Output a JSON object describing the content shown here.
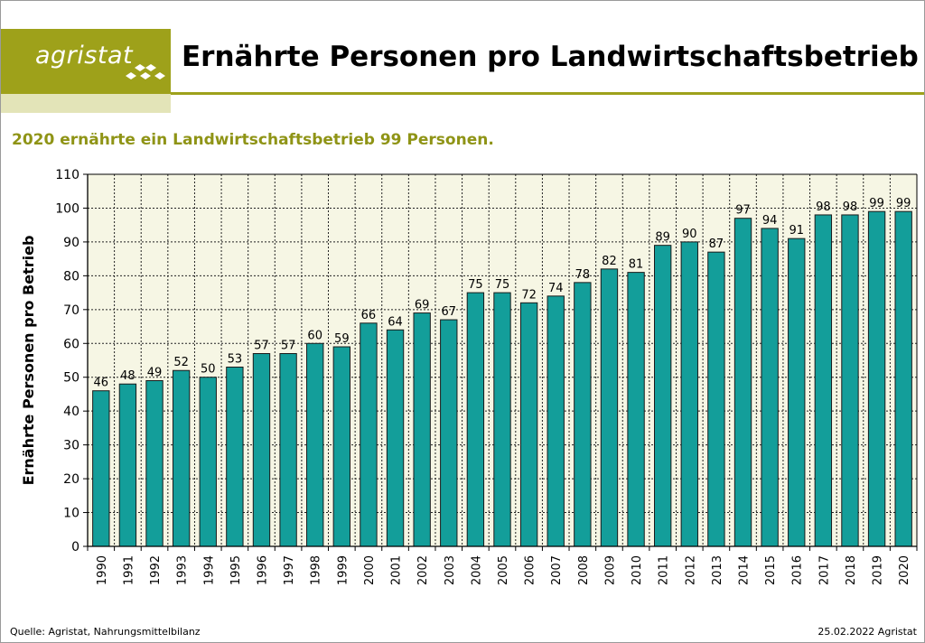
{
  "header": {
    "logo_text": "agristat",
    "title": "Ernährte Personen pro Landwirtschaftsbetrieb",
    "subtitle": "2020 ernährte ein Landwirtschaftsbetrieb 99 Personen."
  },
  "footer": {
    "source": "Quelle: Agristat, Nahrungsmittelbilanz",
    "date": "25.02.2022 Agristat"
  },
  "colors": {
    "bar": "#139e9a",
    "plot_bg": "#f6f6e4",
    "accent": "#9ea11a"
  },
  "chart_data": {
    "type": "bar",
    "title": "",
    "xlabel": "",
    "ylabel": "Ernährte Personen pro Betrieb",
    "ylim": [
      0,
      110
    ],
    "yticks": [
      0,
      10,
      20,
      30,
      40,
      50,
      60,
      70,
      80,
      90,
      100,
      110
    ],
    "grid": true,
    "categories": [
      "1990",
      "1991",
      "1992",
      "1993",
      "1994",
      "1995",
      "1996",
      "1997",
      "1998",
      "1999",
      "2000",
      "2001",
      "2002",
      "2003",
      "2004",
      "2005",
      "2006",
      "2007",
      "2008",
      "2009",
      "2010",
      "2011",
      "2012",
      "2013",
      "2014",
      "2015",
      "2016",
      "2017",
      "2018",
      "2019",
      "2020"
    ],
    "values": [
      46,
      48,
      49,
      52,
      50,
      53,
      57,
      57,
      60,
      59,
      66,
      64,
      69,
      67,
      75,
      75,
      72,
      74,
      78,
      82,
      81,
      89,
      90,
      87,
      97,
      94,
      91,
      98,
      98,
      99,
      99
    ],
    "data_labels": true
  }
}
